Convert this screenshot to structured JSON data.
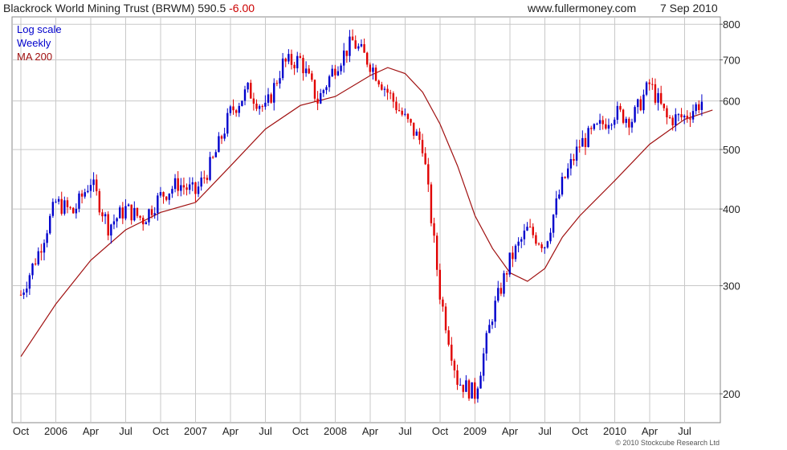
{
  "header": {
    "title": "Blackrock World Mining Trust (BRWM) 590.5",
    "change": "-6.00",
    "site": "www.fullermoney.com",
    "date": "7 Sep 2010"
  },
  "legend": {
    "scale": "Log scale",
    "period": "Weekly",
    "ma": "MA 200"
  },
  "copyright": "© 2010 Stockcube Research Ltd",
  "colors": {
    "up": "#0000cc",
    "down": "#e00000",
    "ma": "#a01010",
    "grid": "#c8c8c8",
    "legend_scale": "#0000cc",
    "legend_period": "#0000cc",
    "legend_ma": "#a01010"
  },
  "chart_data": {
    "type": "line",
    "title": "Blackrock World Mining Trust (BRWM)",
    "y_scale": "log",
    "ylim": [
      180,
      820
    ],
    "yticks": [
      200,
      300,
      400,
      500,
      600,
      700,
      800
    ],
    "x_ticks": [
      "Oct",
      "2006",
      "Apr",
      "Jul",
      "Oct",
      "2007",
      "Apr",
      "Jul",
      "Oct",
      "2008",
      "Apr",
      "Jul",
      "Oct",
      "2009",
      "Apr",
      "Jul",
      "Oct",
      "2010",
      "Apr",
      "Jul"
    ],
    "xlim": [
      0,
      20
    ],
    "grid": true,
    "series": [
      {
        "name": "Weekly",
        "style": "candlestick",
        "x": [
          0.0,
          0.5,
          1.0,
          1.5,
          2.0,
          2.5,
          3.0,
          3.5,
          4.0,
          4.5,
          5.0,
          5.5,
          6.0,
          6.5,
          7.0,
          7.5,
          8.0,
          8.5,
          9.0,
          9.5,
          10.0,
          10.5,
          11.0,
          11.5,
          12.0,
          12.5,
          13.0,
          13.5,
          14.0,
          14.5,
          15.0,
          15.5,
          16.0,
          16.5,
          17.0,
          17.5,
          18.0,
          18.5,
          19.0,
          19.5
        ],
        "close": [
          290,
          340,
          410,
          395,
          445,
          375,
          400,
          385,
          420,
          440,
          425,
          480,
          575,
          625,
          580,
          690,
          700,
          600,
          685,
          750,
          690,
          620,
          560,
          510,
          290,
          210,
          200,
          270,
          330,
          370,
          350,
          440,
          510,
          540,
          575,
          560,
          640,
          560,
          565,
          600
        ]
      },
      {
        "name": "MA 200",
        "style": "line",
        "x": [
          0.0,
          1.0,
          2.0,
          3.0,
          4.0,
          5.0,
          6.0,
          7.0,
          8.0,
          9.0,
          10.0,
          10.5,
          11.0,
          11.5,
          12.0,
          12.5,
          13.0,
          13.5,
          14.0,
          14.5,
          15.0,
          15.5,
          16.0,
          17.0,
          18.0,
          19.0,
          19.8
        ],
        "values": [
          230,
          280,
          330,
          370,
          395,
          410,
          470,
          540,
          590,
          610,
          660,
          680,
          665,
          620,
          550,
          470,
          390,
          345,
          315,
          305,
          320,
          360,
          390,
          445,
          510,
          560,
          580
        ]
      }
    ]
  }
}
